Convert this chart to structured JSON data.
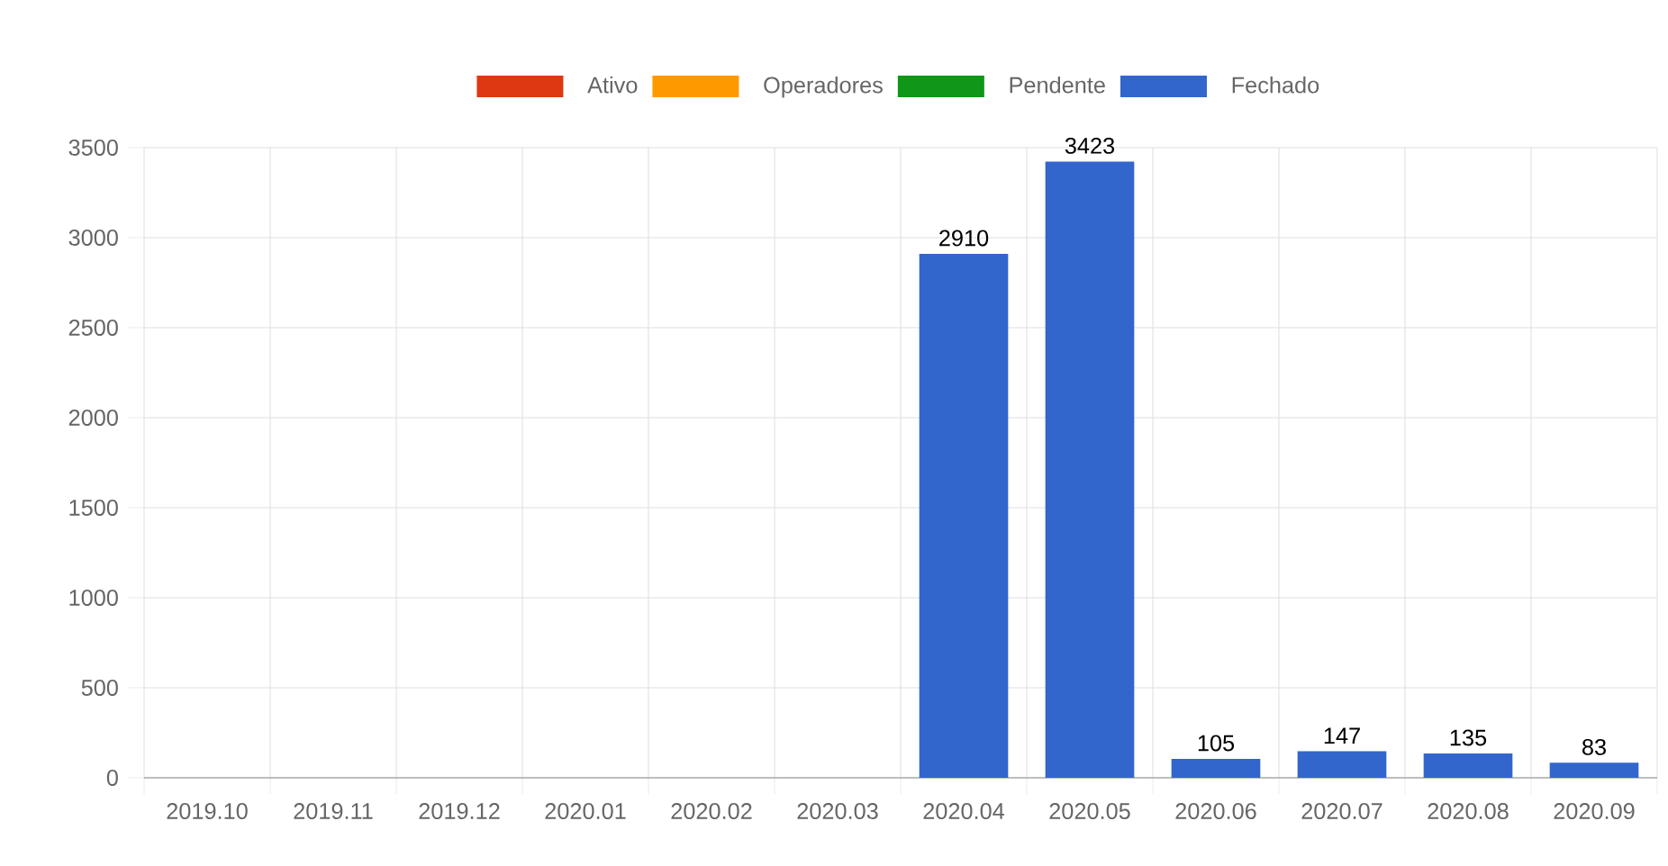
{
  "chart_data": {
    "type": "bar",
    "categories": [
      "2019.10",
      "2019.11",
      "2019.12",
      "2020.01",
      "2020.02",
      "2020.03",
      "2020.04",
      "2020.05",
      "2020.06",
      "2020.07",
      "2020.08",
      "2020.09"
    ],
    "series": [
      {
        "name": "Ativo",
        "color": "#dc3912",
        "values": [
          null,
          null,
          null,
          null,
          null,
          null,
          null,
          null,
          null,
          null,
          null,
          null
        ]
      },
      {
        "name": "Operadores",
        "color": "#ff9900",
        "values": [
          null,
          null,
          null,
          null,
          null,
          null,
          null,
          null,
          null,
          null,
          null,
          null
        ]
      },
      {
        "name": "Pendente",
        "color": "#109618",
        "values": [
          null,
          null,
          null,
          null,
          null,
          null,
          null,
          null,
          null,
          null,
          null,
          null
        ]
      },
      {
        "name": "Fechado",
        "color": "#3366cc",
        "values": [
          null,
          null,
          null,
          null,
          null,
          null,
          2910,
          3423,
          105,
          147,
          135,
          83
        ]
      }
    ],
    "ylim": [
      0,
      3500
    ],
    "yticks": [
      0,
      500,
      1000,
      1500,
      2000,
      2500,
      3000,
      3500
    ],
    "grid": true,
    "legend": "top",
    "data_labels": true
  }
}
